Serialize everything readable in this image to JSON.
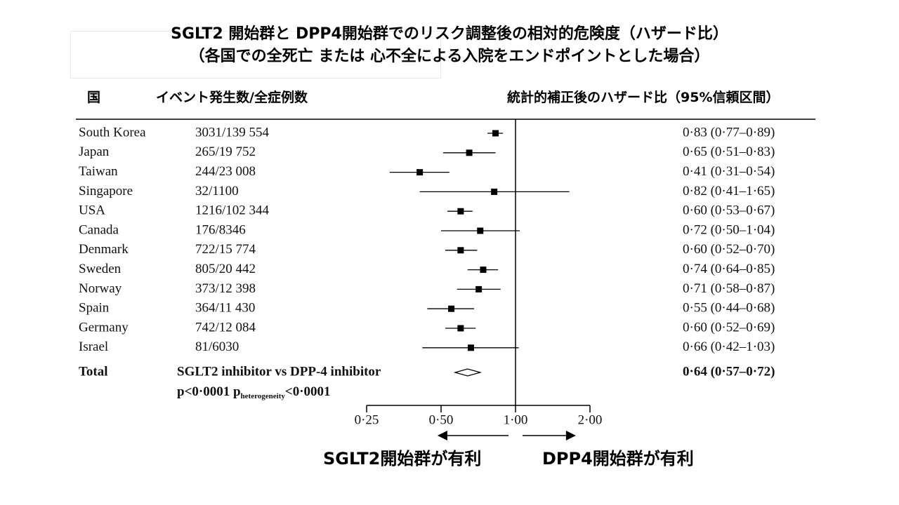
{
  "title": {
    "line1": "SGLT2 開始群と DPP4開始群でのリスク調整後の相対的危険度（ハザード比）",
    "line2": "（各国での全死亡 または 心不全による入院をエンドポイントとした場合）"
  },
  "headers": {
    "country": "国",
    "events": "イベント発生数/全症例数",
    "hr": "統計的補正後のハザード比（95%信頼区間）"
  },
  "chart_data": {
    "type": "forest",
    "x_scale": "log",
    "xlim": [
      0.25,
      2.0
    ],
    "reference_line": 1.0,
    "x_ticks": [
      {
        "value": 0.25,
        "label": "0·25"
      },
      {
        "value": 0.5,
        "label": "0·50"
      },
      {
        "value": 1.0,
        "label": "1·00"
      },
      {
        "value": 2.0,
        "label": "2·00"
      }
    ],
    "rows": [
      {
        "country": "South Korea",
        "events": "3031/139 554",
        "hr": 0.83,
        "lo": 0.77,
        "hi": 0.89,
        "label": "0·83 (0·77–0·89)"
      },
      {
        "country": "Japan",
        "events": "265/19 752",
        "hr": 0.65,
        "lo": 0.51,
        "hi": 0.83,
        "label": "0·65 (0·51–0·83)"
      },
      {
        "country": "Taiwan",
        "events": "244/23 008",
        "hr": 0.41,
        "lo": 0.31,
        "hi": 0.54,
        "label": "0·41 (0·31–0·54)"
      },
      {
        "country": "Singapore",
        "events": "32/1100",
        "hr": 0.82,
        "lo": 0.41,
        "hi": 1.65,
        "label": "0·82 (0·41–1·65)"
      },
      {
        "country": "USA",
        "events": "1216/102 344",
        "hr": 0.6,
        "lo": 0.53,
        "hi": 0.67,
        "label": "0·60 (0·53–0·67)"
      },
      {
        "country": "Canada",
        "events": "176/8346",
        "hr": 0.72,
        "lo": 0.5,
        "hi": 1.04,
        "label": "0·72 (0·50–1·04)"
      },
      {
        "country": "Denmark",
        "events": "722/15 774",
        "hr": 0.6,
        "lo": 0.52,
        "hi": 0.7,
        "label": "0·60 (0·52–0·70)"
      },
      {
        "country": "Sweden",
        "events": "805/20 442",
        "hr": 0.74,
        "lo": 0.64,
        "hi": 0.85,
        "label": "0·74 (0·64–0·85)"
      },
      {
        "country": "Norway",
        "events": "373/12 398",
        "hr": 0.71,
        "lo": 0.58,
        "hi": 0.87,
        "label": "0·71 (0·58–0·87)"
      },
      {
        "country": "Spain",
        "events": "364/11 430",
        "hr": 0.55,
        "lo": 0.44,
        "hi": 0.68,
        "label": "0·55 (0·44–0·68)"
      },
      {
        "country": "Germany",
        "events": "742/12 084",
        "hr": 0.6,
        "lo": 0.52,
        "hi": 0.69,
        "label": "0·60 (0·52–0·69)"
      },
      {
        "country": "Israel",
        "events": "81/6030",
        "hr": 0.66,
        "lo": 0.42,
        "hi": 1.03,
        "label": "0·66 (0·42–1·03)"
      }
    ],
    "total": {
      "label": "Total",
      "comparison": "SGLT2 inhibitor vs DPP-4 inhibitor",
      "hr": 0.64,
      "lo": 0.57,
      "hi": 0.72,
      "hr_label": "0·64 (0·57–0·72)",
      "p_prefix": "p<0·0001 p",
      "p_sub": "heterogeneity",
      "p_suffix": "<0·0001"
    }
  },
  "legend": {
    "favors_left": "SGLT2開始群が有利",
    "favors_right": "DPP4開始群が有利"
  }
}
